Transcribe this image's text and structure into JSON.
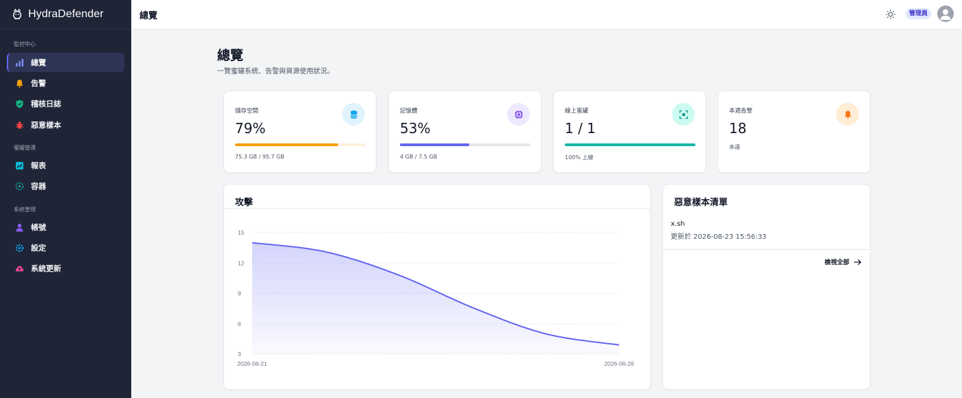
{
  "app": {
    "name": "HydraDefender"
  },
  "sidebar": {
    "sections": [
      {
        "title": "監控中心"
      },
      {
        "title": "蜜罐營運"
      },
      {
        "title": "系統管理"
      }
    ],
    "items": [
      {
        "label": "總覽",
        "icon": "bar-chart-icon",
        "active": true
      },
      {
        "label": "告警",
        "icon": "bell-icon"
      },
      {
        "label": "稽核日誌",
        "icon": "shield-check-icon"
      },
      {
        "label": "惡意樣本",
        "icon": "bug-icon"
      },
      {
        "label": "報表",
        "icon": "report-icon"
      },
      {
        "label": "容器",
        "icon": "container-icon"
      },
      {
        "label": "帳號",
        "icon": "user-icon"
      },
      {
        "label": "設定",
        "icon": "gear-icon"
      },
      {
        "label": "系統更新",
        "icon": "cloud-upload-icon"
      }
    ]
  },
  "topbar": {
    "title": "總覽",
    "role": "管理員",
    "theme_icon": "sun-icon",
    "avatar_icon": "user-avatar-icon"
  },
  "page": {
    "title": "總覽",
    "subtitle": "一覽蜜罐系統、告警與資源使用狀況。"
  },
  "stats": [
    {
      "label": "儲存空間",
      "value": "79%",
      "progress": 0.79,
      "foot": "75.3 GB / 95.7 GB",
      "icon": "database-icon",
      "color": "#f59e0b",
      "track": "#fdf0dc",
      "icon_bg": "#e0f2fe",
      "icon_color": "#0ea5e9"
    },
    {
      "label": "記憶體",
      "value": "53%",
      "progress": 0.53,
      "foot": "4 GB / 7.5 GB",
      "icon": "chip-icon",
      "color": "#6366f1",
      "track": "#e5e7eb",
      "icon_bg": "#ede9fe",
      "icon_color": "#7c3aed"
    },
    {
      "label": "線上蜜罐",
      "value": "1 / 1",
      "progress": 1.0,
      "foot": "100% 上線",
      "icon": "scan-icon",
      "color": "#14b8a6",
      "track": "#ccfbf1",
      "icon_bg": "#ccfbf1",
      "icon_color": "#0d9488"
    },
    {
      "label": "本週告警",
      "value": "18",
      "foot": "本週",
      "icon": "bell-icon",
      "icon_bg": "#ffedd5",
      "icon_color": "#f97316"
    }
  ],
  "attack_panel": {
    "title": "攻擊"
  },
  "chart_data": {
    "type": "area",
    "title": "攻擊",
    "x": [
      "2026-06-21",
      "2026-06-22",
      "2026-06-23",
      "2026-06-24",
      "2026-06-25",
      "2026-06-26"
    ],
    "series": [
      {
        "values": [
          14,
          13.1,
          10.8,
          7.6,
          5.0,
          3.9
        ]
      }
    ],
    "xticks": [
      "2026-06-21",
      "2026-06-26"
    ],
    "yticks": [
      3,
      6,
      9,
      12,
      15
    ],
    "ylim": [
      3,
      15
    ],
    "grid": true,
    "color": "#6366f1"
  },
  "malware_panel": {
    "title": "惡意樣本清單",
    "items": [
      {
        "name": "x.sh",
        "updated": "更新於 2026-08-23 15:56:33"
      }
    ],
    "view_all": "檢視全部"
  }
}
